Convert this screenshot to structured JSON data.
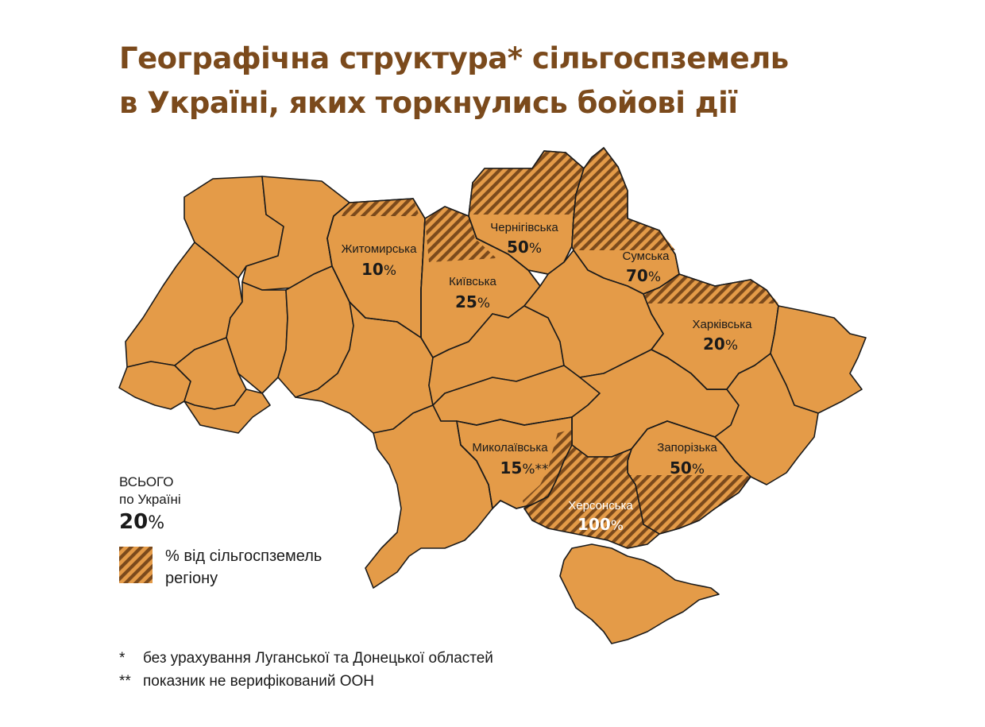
{
  "title": {
    "line1": "Географічна структура* сільгоспземель",
    "line2": "в Україні, яких торкнулись бойові дії"
  },
  "colors": {
    "title": "#7b4a1c",
    "region_fill": "#e49b48",
    "hatch_stripe": "#7b4a1c",
    "border": "#1a1a1a"
  },
  "regions": [
    {
      "name": "Житомирська",
      "value": "10",
      "unit": "%",
      "suffix": "",
      "affected_share": 0.1
    },
    {
      "name": "Київська",
      "value": "25",
      "unit": "%",
      "suffix": "",
      "affected_share": 0.25
    },
    {
      "name": "Чернігівська",
      "value": "50",
      "unit": "%",
      "suffix": "",
      "affected_share": 0.5
    },
    {
      "name": "Сумська",
      "value": "70",
      "unit": "%",
      "suffix": "",
      "affected_share": 0.7
    },
    {
      "name": "Харківська",
      "value": "20",
      "unit": "%",
      "suffix": "",
      "affected_share": 0.2
    },
    {
      "name": "Миколаївська",
      "value": "15",
      "unit": "%",
      "suffix": "**",
      "affected_share": 0.15
    },
    {
      "name": "Запорізька",
      "value": "50",
      "unit": "%",
      "suffix": "",
      "affected_share": 0.5
    },
    {
      "name": "Херсонська",
      "value": "100",
      "unit": "%",
      "suffix": "",
      "affected_share": 1.0
    }
  ],
  "total": {
    "line1": "ВСЬОГО",
    "line2": "по Україні",
    "value": "20",
    "unit": "%"
  },
  "legend": {
    "icon": "hatched-swatch",
    "line1": "% від сільгоспземель",
    "line2": "регіону"
  },
  "notes": [
    {
      "mark": "*",
      "text": "без урахування Луганської та Донецької областей"
    },
    {
      "mark": "**",
      "text": "показник не верифікований ООН"
    }
  ]
}
